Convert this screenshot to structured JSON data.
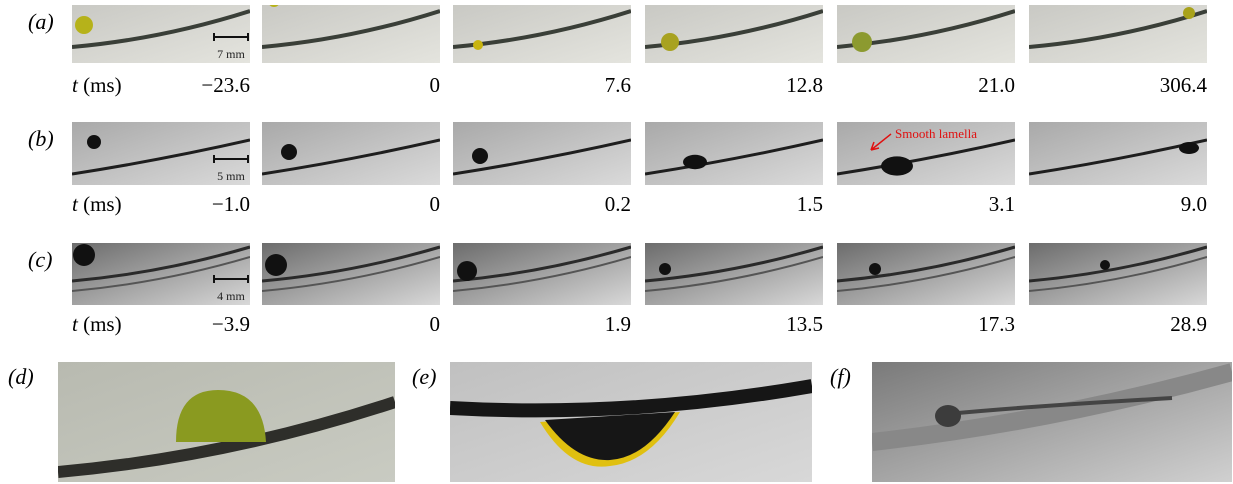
{
  "panels": [
    {
      "label": "(a)",
      "time_variable": "t",
      "time_unit": "(ms)",
      "times": [
        "−23.6",
        "0",
        "7.6",
        "12.8",
        "21.0",
        "306.4"
      ],
      "scale_bar": "7 mm"
    },
    {
      "label": "(b)",
      "time_variable": "t",
      "time_unit": "(ms)",
      "times": [
        "−1.0",
        "0",
        "0.2",
        "1.5",
        "3.1",
        "9.0"
      ],
      "scale_bar": "5 mm",
      "annotation": "Smooth lamella"
    },
    {
      "label": "(c)",
      "time_variable": "t",
      "time_unit": "(ms)",
      "times": [
        "−3.9",
        "0",
        "1.9",
        "13.5",
        "17.3",
        "28.9"
      ],
      "scale_bar": "4 mm"
    }
  ],
  "closeups": [
    {
      "label": "(d)"
    },
    {
      "label": "(e)"
    },
    {
      "label": "(f)"
    }
  ]
}
